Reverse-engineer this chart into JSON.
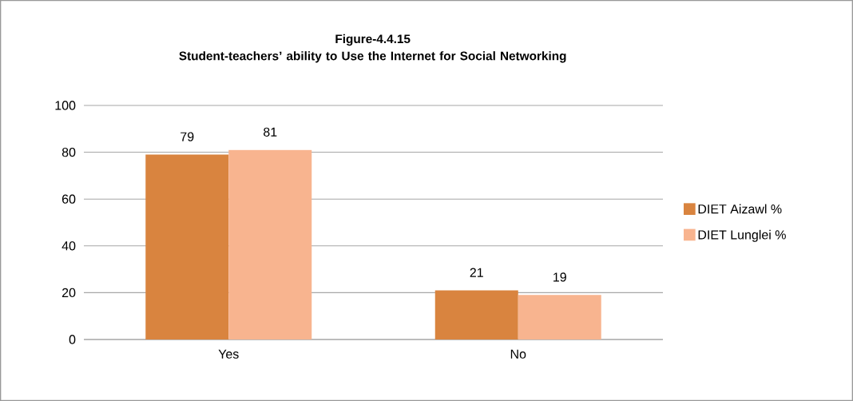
{
  "chart_data": {
    "type": "bar",
    "title": "Figure-4.4.15\nStudent-teachers’ ability to Use the Internet for Social Networking",
    "categories": [
      "Yes",
      "No"
    ],
    "series": [
      {
        "name": "DIET Aizawl %",
        "color": "#d9843f",
        "values": [
          79,
          21
        ]
      },
      {
        "name": "DIET Lunglei %",
        "color": "#f8b48f",
        "values": [
          81,
          19
        ]
      }
    ],
    "ylim": [
      0,
      100
    ],
    "yticks": [
      0,
      20,
      40,
      60,
      80,
      100
    ],
    "grid": "y",
    "legend": "right",
    "data_labels": true
  }
}
